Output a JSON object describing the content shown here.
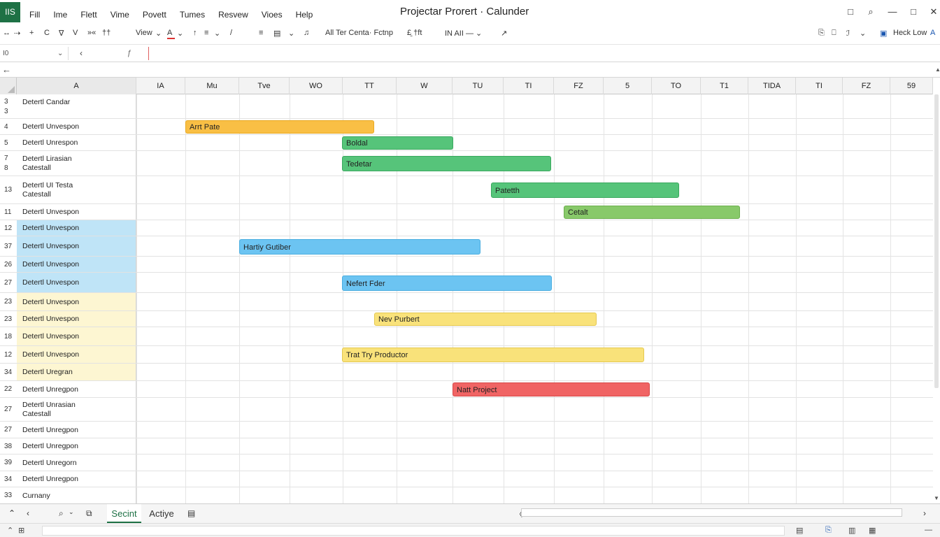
{
  "app": {
    "badge": "IIS",
    "title": "Projectar Prorert · Calunder",
    "menu": [
      "Fill",
      "Ime",
      "Flett",
      "Vime",
      "Povett",
      "Tumes",
      "Resvew",
      "Vioes",
      "Help"
    ]
  },
  "window_buttons": [
    "□",
    "⌕",
    "—",
    "□",
    "✕"
  ],
  "ribbon": {
    "left_glyphs": [
      "↔",
      "⇢",
      "+",
      "C",
      "∇",
      "V",
      "»«",
      "††"
    ],
    "view_label": "View",
    "view_caret": "⌄",
    "font_color_glyph": "A",
    "font_color_caret": "⌄",
    "mid_glyphs": [
      "↑",
      "≡",
      "⌄",
      "/",
      "≡",
      "▤",
      "⌄",
      "♫"
    ],
    "align_label": "All Ter Centa· Fctnp",
    "extra_label": "£̱ †ft",
    "size_label": "IN  AII  —  ⌄",
    "arrow_glyph": "↗",
    "right_glyphs": [
      "⎘",
      "⎕",
      "ℐ",
      "⌄"
    ],
    "heck_label": "Heck Low",
    "heck_suffix": "A"
  },
  "formula": {
    "name_box": "I0",
    "name_caret": "⌄",
    "back_glyph": "‹",
    "fx_glyph": "ƒ"
  },
  "nav": {
    "back_glyph": "←"
  },
  "grid": {
    "col_a_header": "A",
    "date_headers": [
      "IA",
      "Mu",
      "Tve",
      "WO",
      "TT",
      "W",
      "TU",
      "TI",
      "FZ",
      "5",
      "TO",
      "T1",
      "TIDA",
      "TI",
      "FZ",
      "59"
    ],
    "rows": [
      {
        "num": [
          "3",
          "3"
        ],
        "label": [
          "Detertl Candar"
        ],
        "bg": "#ffffff"
      },
      {
        "num": [
          "4"
        ],
        "label": [
          "Detertl Unvespon"
        ],
        "bg": "#ffffff"
      },
      {
        "num": [
          "5"
        ],
        "label": [
          "Detertl Unrespon"
        ],
        "bg": "#ffffff"
      },
      {
        "num": [
          "7",
          "8"
        ],
        "label": [
          "Detertl Lirasian",
          "Catestall"
        ],
        "bg": "#ffffff"
      },
      {
        "num": [
          "13"
        ],
        "label": [
          "Detertl UI Testa",
          "Catestall"
        ],
        "bg": "#ffffff"
      },
      {
        "num": [
          "11"
        ],
        "label": [
          "Detertl Unvespon"
        ],
        "bg": "#ffffff"
      },
      {
        "num": [
          "12"
        ],
        "label": [
          "Detertl Unvespon"
        ],
        "bg": "#bfe4f7"
      },
      {
        "num": [
          "37"
        ],
        "label": [
          "Detertl Unvespon"
        ],
        "bg": "#bfe4f7"
      },
      {
        "num": [
          "26"
        ],
        "label": [
          "Detertl Unvespon"
        ],
        "bg": "#bfe4f7"
      },
      {
        "num": [
          "27"
        ],
        "label": [
          "Detertl Unvespon"
        ],
        "bg": "#bfe4f7"
      },
      {
        "num": [
          "23"
        ],
        "label": [
          "Detertl Unvespon"
        ],
        "bg": "#fdf6d2"
      },
      {
        "num": [
          "23"
        ],
        "label": [
          "Detertl Unvespon"
        ],
        "bg": "#fdf6d2"
      },
      {
        "num": [
          "18"
        ],
        "label": [
          "Detertl Unvespon"
        ],
        "bg": "#fdf6d2"
      },
      {
        "num": [
          "12"
        ],
        "label": [
          "Detertl Unvespon"
        ],
        "bg": "#fdf6d2"
      },
      {
        "num": [
          "34"
        ],
        "label": [
          "Detertl Uregran"
        ],
        "bg": "#fdf6d2"
      },
      {
        "num": [
          "22"
        ],
        "label": [
          "Detertl Unregpon"
        ],
        "bg": "#ffffff"
      },
      {
        "num": [
          "27"
        ],
        "label": [
          "Detertl Unrasian",
          "Catestall"
        ],
        "bg": "#ffffff"
      },
      {
        "num": [
          "27"
        ],
        "label": [
          "Detertl Unregpon"
        ],
        "bg": "#ffffff"
      },
      {
        "num": [
          "38"
        ],
        "label": [
          "Detertl Unregpon"
        ],
        "bg": "#ffffff"
      },
      {
        "num": [
          "39"
        ],
        "label": [
          "Detertl Unregorn"
        ],
        "bg": "#ffffff"
      },
      {
        "num": [
          "34"
        ],
        "label": [
          "Detertl Unregpon"
        ],
        "bg": "#ffffff"
      },
      {
        "num": [
          "33"
        ],
        "label": [
          "Curnany"
        ],
        "bg": "#ffffff"
      }
    ],
    "bars": [
      {
        "label": "Arrt Pate",
        "color": "#f9bf45",
        "border": "#e8a820"
      },
      {
        "label": "Boldal",
        "color": "#56c47a",
        "border": "#3aa85e"
      },
      {
        "label": "Tedetar",
        "color": "#56c47a",
        "border": "#3aa85e"
      },
      {
        "label": "Patetth",
        "color": "#56c47a",
        "border": "#3aa85e"
      },
      {
        "label": "Cetalt",
        "color": "#88c96a",
        "border": "#6aae4c"
      },
      {
        "label": "Hartiy Gutiber",
        "color": "#6cc4f2",
        "border": "#4aaee0"
      },
      {
        "label": "Nefert Fder",
        "color": "#6cc4f2",
        "border": "#4aaee0"
      },
      {
        "label": "Nev Purbert",
        "color": "#f9e27a",
        "border": "#e4c850"
      },
      {
        "label": "Trat Try Productor",
        "color": "#f9e27a",
        "border": "#e4c850"
      },
      {
        "label": "Natt Project",
        "color": "#f06464",
        "border": "#d84848"
      }
    ]
  },
  "tabs": {
    "nav_left": "⌃",
    "nav_prev": "‹",
    "zoom_icon": "⌕",
    "zoom_caret": "⌄",
    "copy_icon": "⧉",
    "sheets": [
      "Secint",
      "Actiye"
    ],
    "add_sheet": "▤",
    "scroll_left": "〈",
    "scroll_right": "›"
  },
  "status": {
    "left_glyphs": [
      "⌃",
      "⊞"
    ],
    "right_glyphs": [
      "▤",
      "⎘",
      "▥",
      "▦",
      "—"
    ]
  }
}
